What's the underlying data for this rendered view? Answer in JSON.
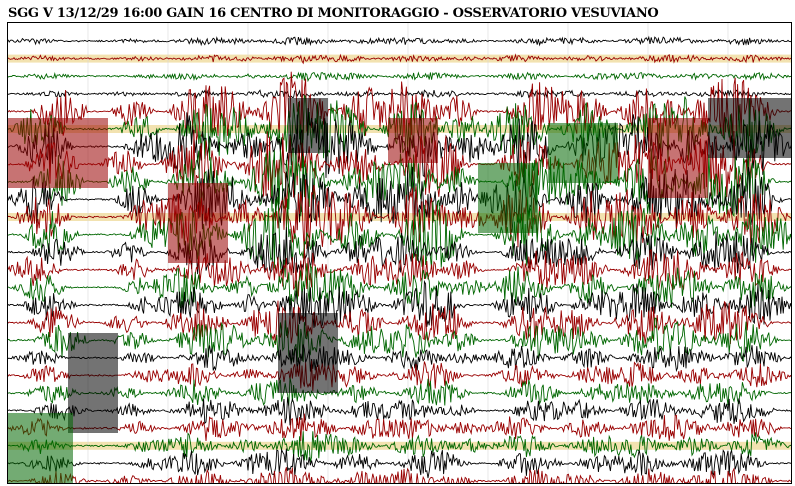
{
  "header": {
    "title": "SGG V 13/12/29 16:00 GAIN  16  CENTRO DI MONITORAGGIO - OSSERVATORIO VESUVIANO"
  },
  "colors": {
    "trace_cycle": [
      "#000000",
      "#990000",
      "#006600"
    ],
    "minute_marker": "#f2e2b0",
    "background": "#ffffff"
  },
  "seismogram": {
    "trace_count": 26,
    "trace_color_order": [
      "black",
      "red",
      "green"
    ],
    "highlighted_rows": [
      1,
      5,
      10,
      23
    ]
  }
}
